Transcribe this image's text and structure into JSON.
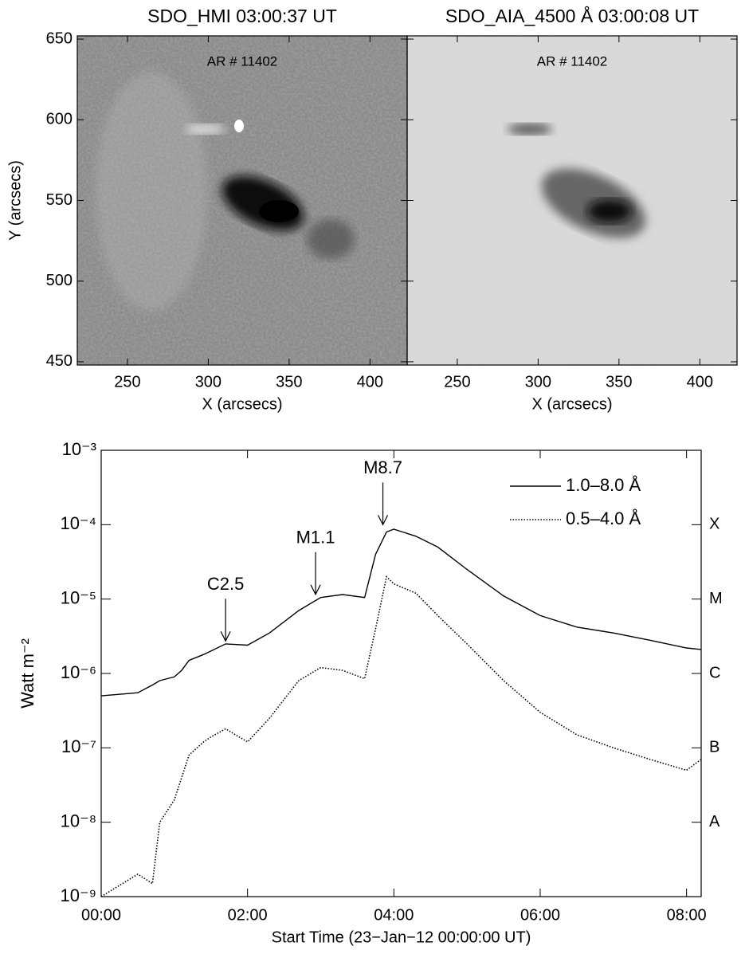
{
  "chart_data": [
    {
      "type": "image",
      "title": "SDO_HMI 03:00:37 UT",
      "annotation": "AR # 11402",
      "xlabel": "X (arcsecs)",
      "ylabel": "Y (arcsecs)",
      "xlim": [
        219,
        423
      ],
      "ylim": [
        448,
        652
      ],
      "xticks": [
        250,
        300,
        350,
        400
      ],
      "yticks": [
        450,
        500,
        550,
        600,
        650
      ]
    },
    {
      "type": "image",
      "title": "SDO_AIA_4500 Å 03:00:08 UT",
      "annotation": "AR # 11402",
      "xlabel": "X (arcsecs)",
      "xlim": [
        219,
        423
      ],
      "ylim": [
        448,
        652
      ],
      "xticks": [
        250,
        300,
        350,
        400
      ],
      "yticks": [
        450,
        500,
        550,
        600,
        650
      ]
    },
    {
      "type": "line",
      "log_y": true,
      "xlabel": "Start Time (23−Jan−12 00:00:00 UT)",
      "ylabel": "Watt m⁻²",
      "xlim": [
        0,
        8.2
      ],
      "ylim": [
        1e-09,
        0.001
      ],
      "xticks": [
        {
          "value": 0,
          "label": "00:00"
        },
        {
          "value": 2,
          "label": "02:00"
        },
        {
          "value": 4,
          "label": "04:00"
        },
        {
          "value": 6,
          "label": "06:00"
        },
        {
          "value": 8,
          "label": "08:00"
        }
      ],
      "yticks": [
        {
          "value": 1e-09,
          "label": "10⁻⁹"
        },
        {
          "value": 1e-08,
          "label": "10⁻⁸"
        },
        {
          "value": 1e-07,
          "label": "10⁻⁷"
        },
        {
          "value": 1e-06,
          "label": "10⁻⁶"
        },
        {
          "value": 1e-05,
          "label": "10⁻⁵"
        },
        {
          "value": 0.0001,
          "label": "10⁻⁴"
        },
        {
          "value": 0.001,
          "label": "10⁻³"
        }
      ],
      "y2lim": [
        1e-09,
        0.001
      ],
      "y2ticks": [
        {
          "value": 1e-08,
          "label": "A"
        },
        {
          "value": 1e-07,
          "label": "B"
        },
        {
          "value": 1e-06,
          "label": "C"
        },
        {
          "value": 1e-05,
          "label": "M"
        },
        {
          "value": 0.0001,
          "label": "X"
        }
      ],
      "legend": "upper right",
      "x": [
        0,
        0.5,
        0.7,
        0.8,
        1.0,
        1.1,
        1.2,
        1.4,
        1.5,
        1.7,
        2.0,
        2.3,
        2.7,
        3.0,
        3.3,
        3.6,
        3.75,
        3.9,
        4.0,
        4.3,
        4.6,
        5.0,
        5.5,
        6.0,
        6.5,
        7.0,
        7.5,
        8.0,
        8.2
      ],
      "series": [
        {
          "name": "1.0–8.0 Å",
          "color": "#000000",
          "style": "solid",
          "values": [
            5e-07,
            5.5e-07,
            7e-07,
            8e-07,
            9e-07,
            1.1e-06,
            1.5e-06,
            1.8e-06,
            2e-06,
            2.5e-06,
            2.4e-06,
            3.5e-06,
            7e-06,
            1.05e-05,
            1.15e-05,
            1.05e-05,
            4e-05,
            8e-05,
            8.7e-05,
            7e-05,
            5e-05,
            2.5e-05,
            1.1e-05,
            6e-06,
            4.2e-06,
            3.5e-06,
            2.8e-06,
            2.2e-06,
            2.1e-06
          ]
        },
        {
          "name": "0.5–4.0 Å",
          "color": "#000000",
          "style": "dotted",
          "values": [
            1e-09,
            2e-09,
            1.5e-09,
            1e-08,
            2e-08,
            4e-08,
            8e-08,
            1.2e-07,
            1.4e-07,
            1.8e-07,
            1.2e-07,
            2.5e-07,
            8e-07,
            1.2e-06,
            1.1e-06,
            8.5e-07,
            4e-06,
            2e-05,
            1.6e-05,
            1.2e-05,
            6e-06,
            2.5e-06,
            8e-07,
            3e-07,
            1.5e-07,
            1e-07,
            7e-08,
            5e-08,
            7e-08
          ]
        }
      ],
      "annotations": [
        {
          "text": "C2.5",
          "x": 1.7,
          "y": 2.6e-06
        },
        {
          "text": "M1.1",
          "x": 2.93,
          "y": 1.1e-05
        },
        {
          "text": "M8.7",
          "x": 3.85,
          "y": 9.5e-05
        }
      ]
    }
  ]
}
